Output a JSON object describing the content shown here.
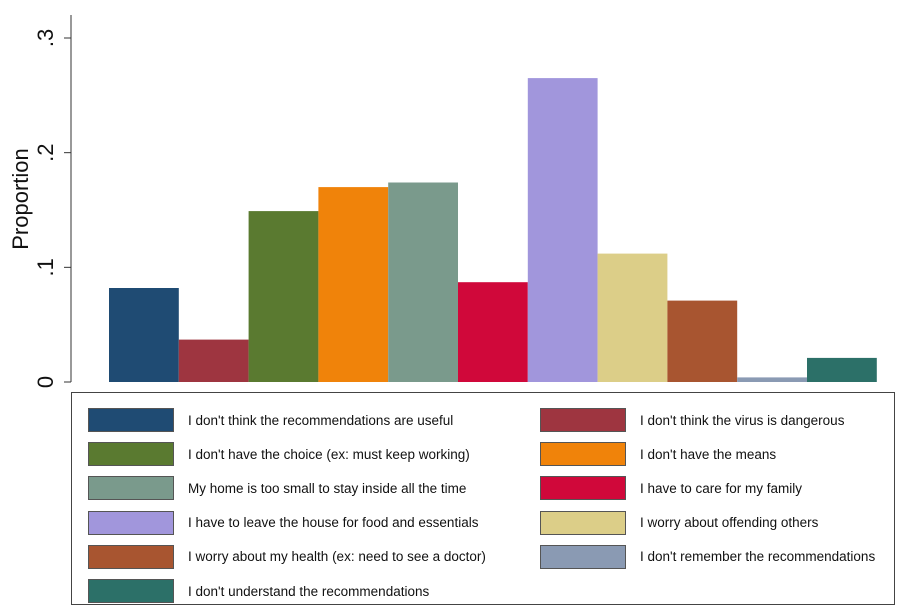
{
  "chart_data": {
    "type": "bar",
    "ylabel": "Proportion",
    "xlabel": "",
    "title": "",
    "ylim": [
      0,
      0.3
    ],
    "yticks": [
      {
        "value": 0,
        "label": "0"
      },
      {
        "value": 0.1,
        "label": ".1"
      },
      {
        "value": 0.2,
        "label": ".2"
      },
      {
        "value": 0.3,
        "label": ".3"
      }
    ],
    "grid": false,
    "legend_position": "bottom",
    "series": [
      {
        "name": "I don't think the recommendations are useful",
        "value": 0.082,
        "color": "#1f4b73"
      },
      {
        "name": "I don't think the virus is dangerous",
        "value": 0.037,
        "color": "#9e3540"
      },
      {
        "name": "I don't have the choice (ex: must keep working)",
        "value": 0.149,
        "color": "#5a7a30"
      },
      {
        "name": "I don't have the means",
        "value": 0.17,
        "color": "#f0830a"
      },
      {
        "name": "My home is too small to stay inside all the time",
        "value": 0.174,
        "color": "#7a9a8c"
      },
      {
        "name": "I have to care for my family",
        "value": 0.087,
        "color": "#d0083a"
      },
      {
        "name": "I have to leave the house for food and essentials",
        "value": 0.265,
        "color": "#a196dc"
      },
      {
        "name": "I worry about offending others",
        "value": 0.112,
        "color": "#dcce88"
      },
      {
        "name": "I worry about my health (ex: need to see a doctor)",
        "value": 0.071,
        "color": "#a85530"
      },
      {
        "name": "I don't remember the recommendations",
        "value": 0.004,
        "color": "#8a9ab3"
      },
      {
        "name": "I don't understand the recommendations",
        "value": 0.021,
        "color": "#2c7068"
      }
    ]
  }
}
